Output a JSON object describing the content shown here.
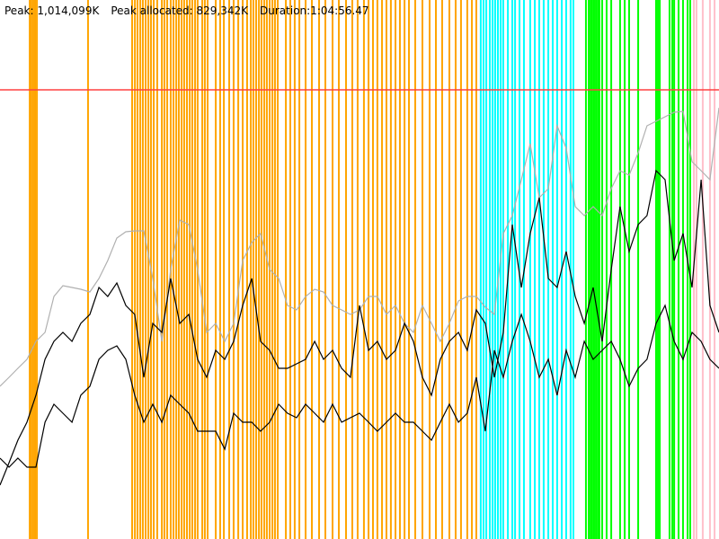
{
  "header": {
    "peak_label": "Peak:",
    "peak_value": "1,014,099K",
    "peak_allocated_label": "Peak allocated:",
    "peak_allocated_value": "829,342K",
    "duration_label": "Duration:",
    "duration_value": "1:04:56.47"
  },
  "chart_data": {
    "type": "line",
    "xlim_s": [
      0,
      3896
    ],
    "ylim_K": [
      0,
      1216800
    ],
    "grid": false,
    "peak_line_K": 1014099,
    "colors": {
      "peak_line": "#ff4040",
      "heap_size": "#b0b0b0",
      "used": "#000000",
      "events_orange": "#ffa500",
      "events_cyan": "#00ffff",
      "events_green": "#00ff00",
      "events_pink": "#ffc0cb"
    },
    "x_s": [
      0,
      49,
      97,
      146,
      195,
      244,
      292,
      341,
      390,
      438,
      487,
      536,
      584,
      633,
      682,
      730,
      779,
      828,
      877,
      925,
      974,
      1023,
      1071,
      1120,
      1169,
      1218,
      1266,
      1315,
      1364,
      1412,
      1461,
      1510,
      1558,
      1607,
      1656,
      1705,
      1753,
      1802,
      1851,
      1899,
      1948,
      1997,
      2045,
      2094,
      2143,
      2192,
      2240,
      2289,
      2338,
      2386,
      2435,
      2484,
      2532,
      2581,
      2630,
      2679,
      2727,
      2776,
      2825,
      2873,
      2922,
      2971,
      3019,
      3068,
      3117,
      3166,
      3214,
      3263,
      3312,
      3360,
      3409,
      3458,
      3506,
      3555,
      3604,
      3653,
      3701,
      3750,
      3799,
      3847,
      3896
    ],
    "series": [
      {
        "key": "gray",
        "values": [
          344760,
          365040,
          385320,
          405600,
          446160,
          466440,
          547560,
          571896,
          567840,
          563784,
          557700,
          588120,
          628680,
          679380,
          693576,
          695604,
          695604,
          588120,
          446160,
          608400,
          719940,
          709800,
          608400,
          466440,
          486720,
          446160,
          486720,
          628680,
          669240,
          689520,
          608400,
          588120,
          527280,
          517140,
          547560,
          563784,
          557700,
          527280,
          517140,
          507000,
          517140,
          547560,
          547560,
          507000,
          527280,
          486720,
          466440,
          527280,
          486720,
          446160,
          486720,
          537420,
          547560,
          547560,
          523224,
          507000,
          689520,
          730080,
          811200,
          892320,
          770640,
          790920,
          932880,
          882180,
          750360,
          730080,
          750360,
          730080,
          790920,
          831480,
          821340,
          872040,
          932880,
          943020,
          953160,
          963300,
          965328,
          851760,
          831480,
          811200,
          973440
        ]
      },
      {
        "key": "black1",
        "values": [
          121680,
          172380,
          223080,
          263640,
          324480,
          405600,
          446160,
          466440,
          446160,
          486720,
          507000,
          567840,
          547560,
          577980,
          527280,
          507000,
          365040,
          486720,
          466440,
          588120,
          486720,
          507000,
          405600,
          365040,
          425880,
          405600,
          446160,
          527280,
          588120,
          446160,
          425880,
          385320,
          385320,
          395460,
          405600,
          446160,
          405600,
          425880,
          385320,
          365040,
          527280,
          425880,
          446160,
          405600,
          425880,
          486720,
          446160,
          365040,
          324480,
          405600,
          446160,
          466440,
          425880,
          517140,
          486720,
          365040,
          466440,
          709800,
          567840,
          689520,
          770640,
          588120,
          567840,
          648960,
          547560,
          486720,
          567840,
          446160,
          608400,
          750360,
          648960,
          709800,
          730080,
          831480,
          811200,
          628680,
          689520,
          567840,
          811200,
          527280,
          466440
        ]
      },
      {
        "key": "black2",
        "values": [
          182520,
          162240,
          182520,
          162240,
          162240,
          263640,
          304200,
          283920,
          263640,
          324480,
          344760,
          405600,
          425880,
          436020,
          405600,
          324480,
          263640,
          304200,
          263640,
          324480,
          304200,
          283920,
          243360,
          243360,
          243360,
          202800,
          283920,
          263640,
          263640,
          243360,
          263640,
          304200,
          283920,
          273780,
          304200,
          283920,
          263640,
          304200,
          263640,
          273780,
          283920,
          263640,
          243360,
          263640,
          283920,
          263640,
          263640,
          243360,
          223080,
          263640,
          304200,
          263640,
          283920,
          365040,
          243360,
          425880,
          365040,
          446160,
          507000,
          446160,
          365040,
          405600,
          324480,
          425880,
          365040,
          446160,
          405600,
          425880,
          446160,
          405600,
          344760,
          385320,
          405600,
          486720,
          527280,
          446160,
          405600,
          466440,
          446160,
          405600,
          385320
        ]
      }
    ],
    "events": {
      "orange": [
        161,
        170,
        180,
        190,
        200,
        477,
        716,
        731,
        745,
        760,
        774,
        789,
        804,
        818,
        833,
        852,
        877,
        891,
        906,
        925,
        940,
        955,
        969,
        984,
        998,
        1013,
        1028,
        1042,
        1057,
        1071,
        1096,
        1110,
        1125,
        1169,
        1193,
        1213,
        1242,
        1266,
        1291,
        1315,
        1339,
        1359,
        1373,
        1388,
        1403,
        1417,
        1432,
        1446,
        1461,
        1476,
        1490,
        1505,
        1549,
        1573,
        1597,
        1622,
        1656,
        1690,
        1729,
        1763,
        1802,
        1836,
        1875,
        1909,
        1938,
        1972,
        1997,
        2021,
        2045,
        2070,
        2094,
        2118,
        2143,
        2167,
        2192,
        2216,
        2250,
        2289,
        2328,
        2362,
        2396,
        2435,
        2469,
        2498,
        2532,
        2557,
        2581
      ],
      "cyan": [
        2605,
        2620,
        2635,
        2654,
        2669,
        2683,
        2698,
        2713,
        2727,
        2752,
        2776,
        2791,
        2815,
        2839,
        2873,
        2898,
        2922,
        2946,
        2971,
        2995,
        3019,
        3044,
        3068,
        3092,
        3107
      ],
      "green": [
        3175,
        3190,
        3200,
        3209,
        3219,
        3229,
        3239,
        3248,
        3263,
        3287,
        3312,
        3360,
        3385,
        3409,
        3458,
        3555,
        3565,
        3575,
        3628,
        3643,
        3653,
        3677,
        3701,
        3726,
        3740
      ],
      "pink": [
        3760,
        3774,
        3808,
        3847,
        3872
      ]
    }
  }
}
